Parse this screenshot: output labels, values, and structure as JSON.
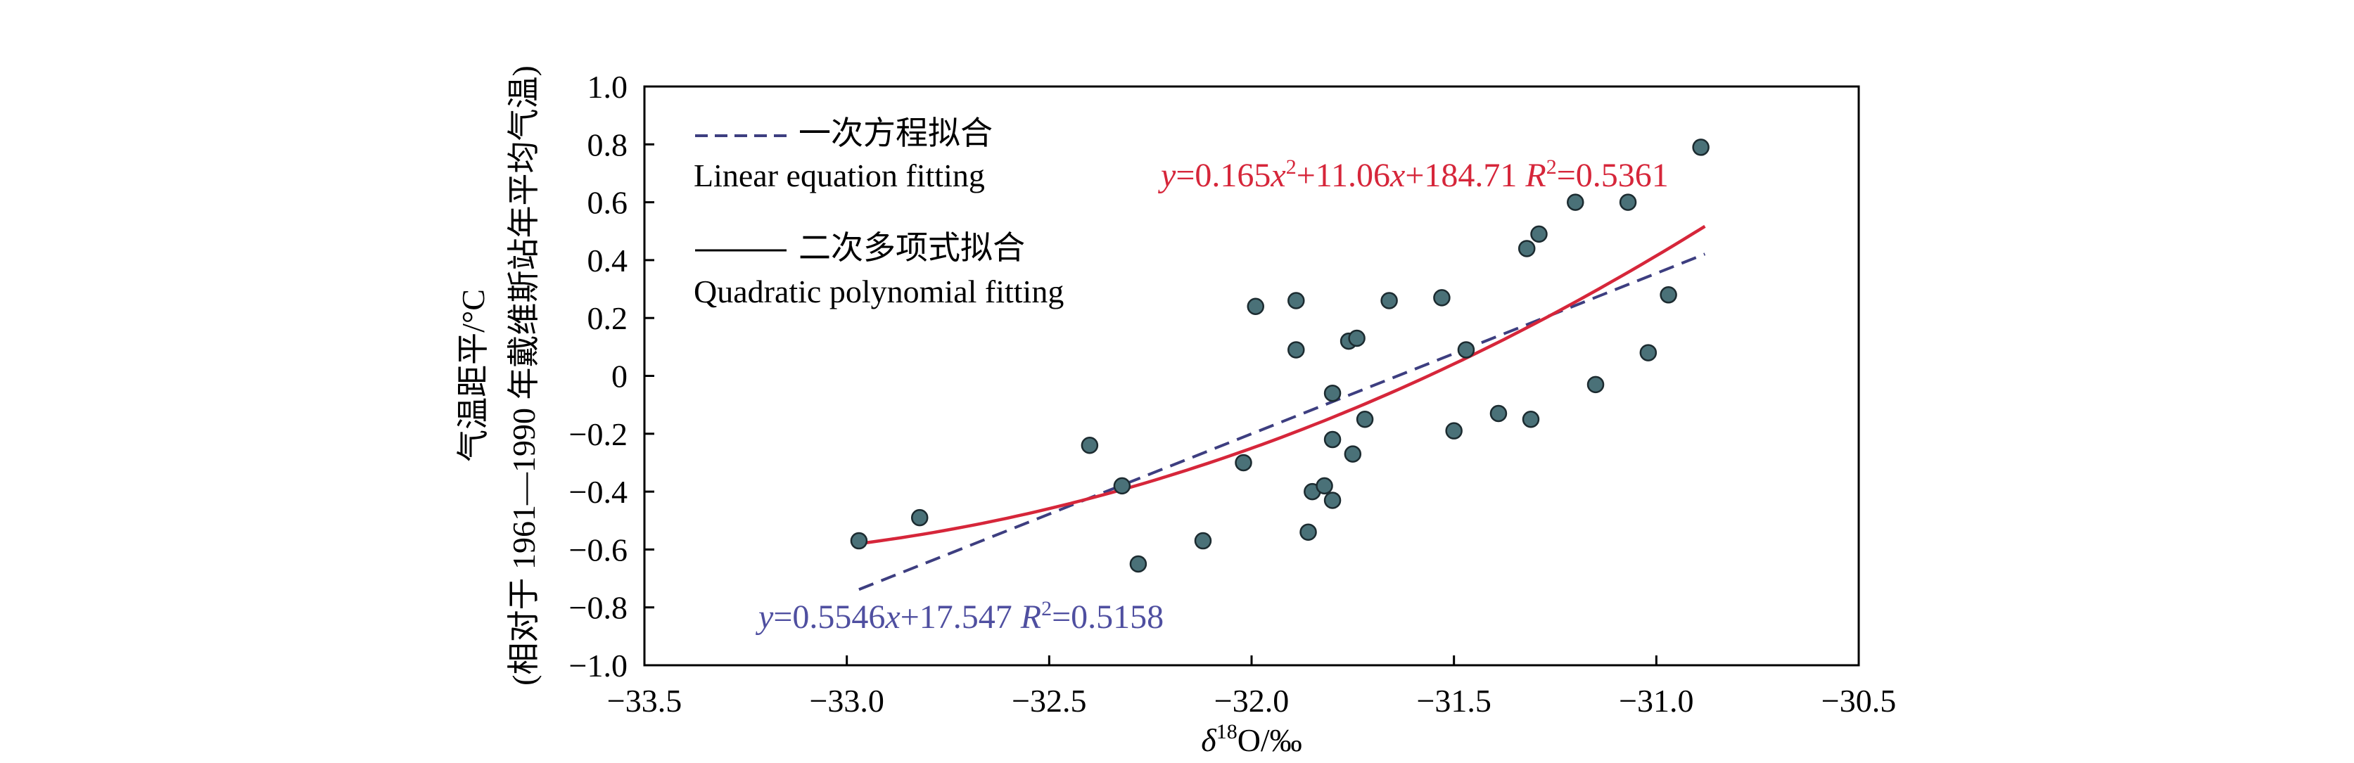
{
  "chart_data": {
    "type": "scatter",
    "title": "",
    "xlabel_greek": "δ",
    "xlabel_sup": "18",
    "xlabel_rest": "O/‰",
    "ylabel_line1": "气温距平/°C",
    "ylabel_line2": "(相对于 1961—1990 年戴维斯站年平均气温)",
    "xlim": [
      -33.5,
      -30.5
    ],
    "ylim": [
      -1.0,
      1.0
    ],
    "xticks": [
      "−33.5",
      "−33.0",
      "−32.5",
      "−32.0",
      "−31.5",
      "−31.0",
      "−30.5"
    ],
    "yticks": [
      "1.0",
      "0.8",
      "0.6",
      "0.4",
      "0.2",
      "0",
      "−0.2",
      "−0.4",
      "−0.6",
      "−0.8",
      "−1.0"
    ],
    "grid": false,
    "legend": {
      "position": "top-left",
      "linear_cn": "一次方程拟合",
      "linear_en": "Linear equation fitting",
      "quad_cn": "二次多项式拟合",
      "quad_en": "Quadratic polynomial fitting"
    },
    "colors": {
      "points": "#4a7178",
      "point_edge": "#1c2b30",
      "linear": "#3d3e80",
      "quadratic": "#d6263a",
      "linear_text": "#4f4fa0",
      "quadratic_text": "#d6263a",
      "axes": "#000000"
    },
    "points": [
      {
        "x": -32.97,
        "y": -0.57
      },
      {
        "x": -32.82,
        "y": -0.49
      },
      {
        "x": -32.4,
        "y": -0.24
      },
      {
        "x": -32.32,
        "y": -0.38
      },
      {
        "x": -32.28,
        "y": -0.65
      },
      {
        "x": -32.12,
        "y": -0.57
      },
      {
        "x": -32.02,
        "y": -0.3
      },
      {
        "x": -31.99,
        "y": 0.24
      },
      {
        "x": -31.89,
        "y": 0.26
      },
      {
        "x": -31.89,
        "y": 0.09
      },
      {
        "x": -31.86,
        "y": -0.54
      },
      {
        "x": -31.85,
        "y": -0.4
      },
      {
        "x": -31.82,
        "y": -0.38
      },
      {
        "x": -31.8,
        "y": -0.43
      },
      {
        "x": -31.8,
        "y": -0.22
      },
      {
        "x": -31.8,
        "y": -0.06
      },
      {
        "x": -31.76,
        "y": 0.12
      },
      {
        "x": -31.75,
        "y": -0.27
      },
      {
        "x": -31.74,
        "y": 0.13
      },
      {
        "x": -31.72,
        "y": -0.15
      },
      {
        "x": -31.66,
        "y": 0.26
      },
      {
        "x": -31.53,
        "y": 0.27
      },
      {
        "x": -31.5,
        "y": -0.19
      },
      {
        "x": -31.47,
        "y": 0.09
      },
      {
        "x": -31.39,
        "y": -0.13
      },
      {
        "x": -31.32,
        "y": 0.44
      },
      {
        "x": -31.31,
        "y": -0.15
      },
      {
        "x": -31.29,
        "y": 0.49
      },
      {
        "x": -31.2,
        "y": 0.6
      },
      {
        "x": -31.15,
        "y": -0.03
      },
      {
        "x": -31.07,
        "y": 0.6
      },
      {
        "x": -31.02,
        "y": 0.08
      },
      {
        "x": -30.97,
        "y": 0.28
      },
      {
        "x": -30.89,
        "y": 0.79
      }
    ],
    "linear_fit": {
      "slope": 0.5546,
      "intercept": 17.547,
      "x_range": [
        -32.97,
        -30.88
      ],
      "label_y": "y",
      "label_eq": "=0.5546",
      "label_x": "x",
      "label_rest": "+17.547 ",
      "label_R": "R",
      "label_R_sup": "2",
      "label_R_val": "=0.5158"
    },
    "quadratic_fit": {
      "a": 0.165,
      "b": 11.06,
      "c": 184.71,
      "x_range": [
        -32.97,
        -30.88
      ],
      "label_y": "y",
      "label_eq": "=0.165",
      "label_x": "x",
      "label_sup": "2",
      "label_mid": "+11.06",
      "label_x2": "x",
      "label_rest": "+184.71 ",
      "label_R": "R",
      "label_R_sup": "2",
      "label_R_val": "=0.5361"
    }
  }
}
